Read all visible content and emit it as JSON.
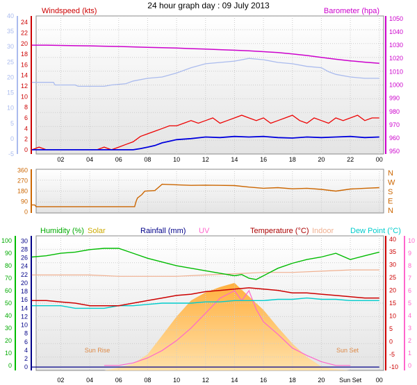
{
  "page_title": "24 hour graph day : 09 July 2013",
  "colors": {
    "wind_avg": "#0000dd",
    "wind_gust": "#ee0000",
    "pressure": "#cc00cc",
    "wind_axis": "#aabbee",
    "pressure_axis": "#cc00cc",
    "direction": "#cc6600",
    "humidity": "#00bb00",
    "solar": "#ffc050",
    "rainfall": "#000088",
    "uv": "#ff66cc",
    "temperature": "#cc0000",
    "indoor": "#f0b090",
    "dewpoint": "#00cccc"
  },
  "chart_data": [
    {
      "id": "wind_pressure",
      "type": "line",
      "legend": {
        "left": "Windspeed (kts)",
        "right": "Barometer (hpa)"
      },
      "x_ticks": [
        "02",
        "04",
        "06",
        "08",
        "10",
        "12",
        "14",
        "16",
        "18",
        "20",
        "22",
        "00"
      ],
      "left_axis_outer": {
        "ticks": [
          -5,
          0,
          5,
          10,
          15,
          20,
          25,
          30,
          35,
          40
        ],
        "range": [
          -5,
          40
        ]
      },
      "left_axis_inner": {
        "ticks": [
          0,
          2,
          4,
          6,
          8,
          10,
          12,
          14,
          16,
          18,
          20,
          22,
          24
        ],
        "range": [
          -0.8,
          25.2
        ]
      },
      "right_axis": {
        "ticks": [
          950,
          960,
          970,
          980,
          990,
          1000,
          1010,
          1020,
          1030,
          1040,
          1050
        ],
        "range": [
          948,
          1052
        ]
      },
      "series": [
        {
          "name": "Barometer (hpa)",
          "axis": "right",
          "x": [
            0,
            1,
            2,
            3,
            4,
            5,
            6,
            7,
            8,
            9,
            10,
            11,
            12,
            13,
            14,
            15,
            16,
            17,
            18,
            19,
            20,
            21,
            22,
            23,
            24
          ],
          "y": [
            1030,
            1030,
            1029.8,
            1029.6,
            1029.5,
            1029.2,
            1029,
            1028.7,
            1028.4,
            1028.1,
            1027.8,
            1027.4,
            1027,
            1026.6,
            1026.2,
            1025.7,
            1025.1,
            1024.4,
            1023.4,
            1022.2,
            1020.8,
            1019.4,
            1018.2,
            1017.2,
            1016.3
          ]
        },
        {
          "name": "Wind direction light (hpa)",
          "axis": "right",
          "x": [
            0,
            1.5,
            1.6,
            3,
            3.2,
            5,
            5.5,
            6.5,
            7,
            8,
            9,
            10,
            11,
            12,
            13,
            14,
            15,
            16,
            17,
            18,
            19,
            20,
            20.5,
            21,
            22,
            23,
            24
          ],
          "y": [
            1002,
            1002,
            1000,
            1000,
            999,
            999,
            1000,
            1001,
            1003,
            1005,
            1006,
            1009,
            1013,
            1016,
            1017,
            1018,
            1020,
            1019,
            1017,
            1016,
            1014,
            1013,
            1010,
            1008,
            1006,
            1005,
            1005
          ]
        },
        {
          "name": "Gust (kts)",
          "axis": "left",
          "x": [
            0,
            0.5,
            1,
            1.5,
            2,
            2.5,
            3,
            3.5,
            4,
            4.5,
            5,
            5.5,
            6,
            6.5,
            7,
            7.5,
            8,
            8.5,
            9,
            9.5,
            10,
            10.5,
            11,
            11.5,
            12,
            12.5,
            13,
            13.5,
            14,
            14.5,
            15,
            15.5,
            16,
            16.5,
            17,
            17.5,
            18,
            18.5,
            19,
            19.5,
            20,
            20.5,
            21,
            21.5,
            22,
            22.5,
            23,
            23.5,
            24
          ],
          "y": [
            0,
            0.5,
            0,
            0,
            0,
            0,
            0,
            0,
            0,
            0,
            0.5,
            0,
            0.5,
            1,
            1.5,
            2.5,
            3,
            3.5,
            4,
            4.5,
            4.5,
            5,
            5.5,
            5,
            5.5,
            6,
            5,
            5.5,
            6,
            6.5,
            6,
            5.5,
            6,
            5,
            5.5,
            6,
            6.5,
            5.5,
            5,
            6,
            5.5,
            5,
            6,
            5.5,
            6,
            6.5,
            5.5,
            6,
            6
          ]
        },
        {
          "name": "Average (kts)",
          "axis": "left",
          "x": [
            0,
            1,
            2,
            3,
            4,
            5,
            6,
            6.5,
            7,
            7.5,
            8,
            8.5,
            9,
            9.5,
            10,
            11,
            12,
            13,
            14,
            15,
            16,
            17,
            18,
            19,
            20,
            21,
            22,
            23,
            24
          ],
          "y": [
            0,
            0,
            0,
            0,
            0,
            0,
            0,
            0,
            0,
            0.2,
            0.5,
            0.8,
            1.3,
            1.6,
            1.9,
            2.1,
            2.4,
            2.3,
            2.5,
            2.4,
            2.5,
            2.3,
            2.2,
            2.4,
            2.3,
            2.4,
            2.5,
            2.3,
            2.4
          ]
        }
      ]
    },
    {
      "id": "wind_direction",
      "type": "line",
      "left_axis": {
        "ticks": [
          0,
          90,
          180,
          270,
          360
        ],
        "range": [
          -10,
          370
        ]
      },
      "right_axis": {
        "ticks": [
          "N",
          "W",
          "S",
          "E",
          "N"
        ]
      },
      "series": [
        {
          "name": "Direction (deg)",
          "x": [
            0,
            0.2,
            0.3,
            2,
            4,
            6,
            7.1,
            7.2,
            7.3,
            7.6,
            7.8,
            8.5,
            9,
            10,
            11,
            12,
            13,
            14,
            15,
            16,
            17,
            18,
            19,
            20,
            21,
            22,
            23,
            24
          ],
          "y": [
            60,
            60,
            45,
            45,
            45,
            45,
            45,
            90,
            120,
            150,
            180,
            185,
            240,
            235,
            230,
            232,
            230,
            228,
            215,
            205,
            210,
            200,
            205,
            195,
            180,
            198,
            205,
            210
          ]
        }
      ]
    },
    {
      "id": "humidity_temperature",
      "type": "line",
      "legend": [
        "Humidity (%)",
        "Solar",
        "Rainfall (mm)",
        "UV",
        "Temperature (°C)",
        "Indoor",
        "Dew Point (°C)"
      ],
      "x_ticks": [
        "02",
        "04",
        "06",
        "08",
        "10",
        "12",
        "14",
        "16",
        "18",
        "20",
        "Sun Set",
        "00"
      ],
      "left_axis_outer": {
        "ticks": [
          0,
          10,
          20,
          30,
          40,
          50,
          60,
          70,
          80,
          90,
          100
        ],
        "range": [
          -4,
          104
        ]
      },
      "left_axis_inner": {
        "ticks": [
          0,
          2,
          4,
          6,
          8,
          10,
          12,
          14,
          16,
          18,
          20,
          22,
          24,
          26,
          28,
          30
        ],
        "range": [
          -0.8,
          31.2
        ]
      },
      "right_axis_temp": {
        "ticks": [
          -10,
          -5,
          0,
          5,
          10,
          15,
          20,
          25,
          30,
          35,
          40
        ],
        "range": [
          -11.3,
          41.3
        ]
      },
      "right_axis_uv": {
        "ticks": [
          0,
          1,
          2,
          3,
          4,
          5,
          6,
          7,
          8,
          9,
          10
        ],
        "range": [
          -0.4,
          10.4
        ]
      },
      "annotations": [
        "Sun Rise",
        "Sun Set"
      ],
      "series": [
        {
          "name": "Humidity (%)",
          "axis": "left_outer",
          "x": [
            0,
            1,
            2,
            3,
            4,
            5,
            6,
            7,
            8,
            9,
            10,
            11,
            12,
            13,
            14,
            14.5,
            15,
            15.5,
            16,
            17,
            18,
            19,
            20,
            21,
            22,
            23,
            24
          ],
          "y": [
            87,
            88,
            90,
            91,
            93,
            94,
            94,
            90,
            86,
            83,
            80,
            78,
            76,
            74,
            72,
            73,
            70,
            69,
            72,
            78,
            82,
            85,
            87,
            90,
            85,
            88,
            91
          ]
        },
        {
          "name": "Temperature (°C)",
          "axis": "right_temp",
          "x": [
            0,
            1,
            2,
            3,
            4,
            5,
            6,
            7,
            8,
            9,
            10,
            11,
            12,
            13,
            14,
            15,
            16,
            17,
            18,
            19,
            20,
            21,
            22,
            23,
            24
          ],
          "y": [
            16,
            16,
            15.5,
            15,
            14,
            14,
            14,
            15,
            16,
            17,
            18,
            18.5,
            19.5,
            20,
            20.5,
            21,
            20.5,
            20,
            19,
            19,
            18.5,
            18,
            17.5,
            17,
            17
          ]
        },
        {
          "name": "Dew Point (°C)",
          "axis": "right_temp",
          "x": [
            0,
            1,
            2,
            3,
            4,
            5,
            6,
            7,
            8,
            9,
            10,
            11,
            12,
            13,
            14,
            15,
            16,
            17,
            18,
            19,
            20,
            21,
            22,
            23,
            24
          ],
          "y": [
            14,
            14,
            14,
            13,
            13,
            13,
            14,
            14,
            14.5,
            15,
            15,
            15,
            15.5,
            15.5,
            16,
            16,
            16,
            16.5,
            16.5,
            17,
            16.5,
            16.5,
            16,
            16,
            16
          ]
        },
        {
          "name": "Indoor",
          "axis": "right_temp",
          "x": [
            0,
            2,
            4,
            6,
            8,
            10,
            12,
            14,
            16,
            18,
            20,
            22,
            24
          ],
          "y": [
            26,
            26,
            26,
            25.5,
            25.5,
            25.5,
            26,
            26.5,
            27,
            27,
            27.5,
            28,
            28
          ]
        },
        {
          "name": "Solar",
          "axis": "solar_pct",
          "x": [
            5,
            6,
            7,
            8,
            9,
            10,
            11,
            12,
            13,
            14,
            14.5,
            15,
            16,
            17,
            18,
            19,
            20,
            21,
            22
          ],
          "y": [
            0,
            2,
            5,
            12,
            26,
            40,
            52,
            58,
            62,
            65,
            60,
            55,
            45,
            32,
            20,
            10,
            3,
            1,
            0
          ]
        },
        {
          "name": "UV",
          "axis": "right_uv",
          "x": [
            5,
            6,
            7,
            8,
            9,
            10,
            11,
            12,
            13,
            14,
            14.5,
            15,
            15.5,
            16,
            17,
            18,
            19,
            20,
            21,
            22
          ],
          "y": [
            0,
            0,
            0.2,
            0.6,
            1.2,
            2,
            3,
            4.2,
            5.4,
            6,
            5.2,
            6,
            4.5,
            3.5,
            2.5,
            1.4,
            0.8,
            0.3,
            0,
            0
          ]
        },
        {
          "name": "Rainfall (mm)",
          "axis": "left_inner",
          "x": [
            0,
            24
          ],
          "y": [
            0,
            0
          ]
        }
      ]
    }
  ]
}
